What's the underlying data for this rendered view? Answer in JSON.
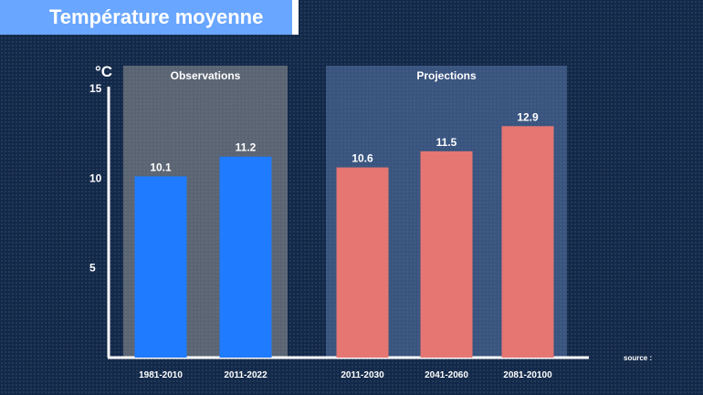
{
  "header": {
    "title": "Température moyenne"
  },
  "source_label": "source :",
  "colors": {
    "observations": "#1f7bff",
    "projections": "#e57672",
    "axis": "#ffffff",
    "text": "#ffffff"
  },
  "chart_data": {
    "type": "bar",
    "title": "Température moyenne",
    "ylabel": "°C",
    "xlabel": "",
    "ylim": [
      0,
      15
    ],
    "yticks": [
      5,
      10,
      15
    ],
    "grid": false,
    "groups": [
      {
        "name": "Observations",
        "categories": [
          "1981-2010",
          "2011-2022"
        ],
        "values": [
          10.1,
          11.2
        ],
        "color": "#1f7bff"
      },
      {
        "name": "Projections",
        "categories": [
          "2011-2030",
          "2041-2060",
          "2081-20100"
        ],
        "values": [
          10.6,
          11.5,
          12.9
        ],
        "color": "#e57672"
      }
    ],
    "categories": [
      "1981-2010",
      "2011-2022",
      "2011-2030",
      "2041-2060",
      "2081-20100"
    ],
    "values": [
      10.1,
      11.2,
      10.6,
      11.5,
      12.9
    ]
  }
}
